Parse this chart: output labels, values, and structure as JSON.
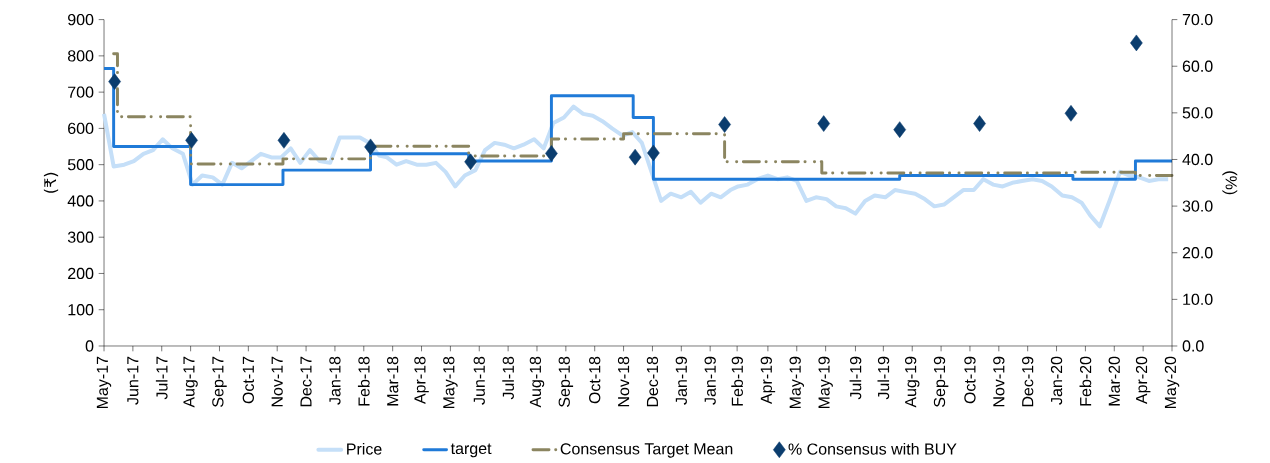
{
  "chart_data": {
    "type": "line",
    "ylabel": "(₹)",
    "y2label": "(%)",
    "x": [
      "2017-05-11",
      "2017-05-21",
      "2017-06-01",
      "2017-06-11",
      "2017-06-21",
      "2017-07-01",
      "2017-07-11",
      "2017-07-21",
      "2017-08-01",
      "2017-08-11",
      "2017-08-21",
      "2017-09-01",
      "2017-09-11",
      "2017-09-21",
      "2017-10-01",
      "2017-10-11",
      "2017-10-21",
      "2017-11-01",
      "2017-11-11",
      "2017-11-21",
      "2017-12-01",
      "2017-12-11",
      "2017-12-21",
      "2018-01-01",
      "2018-01-11",
      "2018-01-21",
      "2018-02-01",
      "2018-02-11",
      "2018-02-21",
      "2018-03-01",
      "2018-03-11",
      "2018-03-21",
      "2018-04-01",
      "2018-04-11",
      "2018-04-21",
      "2018-05-01",
      "2018-05-11",
      "2018-05-21",
      "2018-06-01",
      "2018-06-11",
      "2018-06-21",
      "2018-07-01",
      "2018-07-11",
      "2018-07-21",
      "2018-08-01",
      "2018-08-11",
      "2018-08-21",
      "2018-09-01",
      "2018-09-11",
      "2018-09-21",
      "2018-10-01",
      "2018-10-11",
      "2018-10-21",
      "2018-11-01",
      "2018-11-11",
      "2018-11-21",
      "2018-12-01",
      "2018-12-11",
      "2018-12-21",
      "2019-01-01",
      "2019-01-11",
      "2019-01-21",
      "2019-02-01",
      "2019-02-11",
      "2019-02-21",
      "2019-03-01",
      "2019-03-11",
      "2019-03-21",
      "2019-04-01",
      "2019-04-11",
      "2019-04-21",
      "2019-05-01",
      "2019-05-11",
      "2019-05-21",
      "2019-06-01",
      "2019-06-11",
      "2019-06-21",
      "2019-07-01",
      "2019-07-11",
      "2019-07-21",
      "2019-08-01",
      "2019-08-11",
      "2019-08-21",
      "2019-09-01",
      "2019-09-11",
      "2019-09-21",
      "2019-10-01",
      "2019-10-11",
      "2019-10-21",
      "2019-11-01",
      "2019-11-11",
      "2019-11-21",
      "2019-12-01",
      "2019-12-11",
      "2019-12-21",
      "2020-01-01",
      "2020-01-11",
      "2020-01-21",
      "2020-02-01",
      "2020-02-11",
      "2020-02-21",
      "2020-03-01",
      "2020-03-11",
      "2020-03-21",
      "2020-04-01",
      "2020-04-11",
      "2020-04-21",
      "2020-05-01",
      "2020-05-11",
      "2020-05-21"
    ],
    "series": [
      {
        "name": "Price",
        "color": "#c5dff8",
        "values": [
          640,
          495,
          500,
          510,
          530,
          540,
          570,
          545,
          530,
          445,
          470,
          465,
          445,
          505,
          490,
          510,
          530,
          520,
          520,
          545,
          505,
          540,
          510,
          505,
          575,
          575,
          575,
          560,
          525,
          520,
          500,
          510,
          500,
          500,
          505,
          480,
          440,
          470,
          485,
          540,
          560,
          555,
          545,
          555,
          570,
          545,
          615,
          630,
          660,
          640,
          635,
          620,
          600,
          580,
          590,
          560,
          480,
          400,
          420,
          410,
          425,
          395,
          420,
          410,
          430,
          440,
          445,
          460,
          470,
          460,
          465,
          455,
          400,
          410,
          405,
          385,
          380,
          365,
          400,
          415,
          410,
          430,
          425,
          420,
          405,
          385,
          390,
          410,
          430,
          430,
          460,
          445,
          440,
          450,
          455,
          460,
          455,
          440,
          415,
          410,
          395,
          360,
          330,
          400,
          480,
          470,
          465,
          455,
          460,
          460
        ]
      },
      {
        "name": "target",
        "type": "step",
        "color": "#1f7ad8",
        "x": [
          "2017-05-11",
          "2017-05-21",
          "2017-08-09",
          "2017-11-13",
          "2018-02-12",
          "2018-05-25",
          "2018-08-19",
          "2018-11-12",
          "2018-12-03",
          "2019-08-16",
          "2020-02-12",
          "2020-04-17",
          "2020-05-25"
        ],
        "values": [
          765,
          550,
          445,
          485,
          530,
          510,
          690,
          630,
          460,
          470,
          460,
          510,
          510
        ]
      },
      {
        "name": "Consensus Target Mean",
        "type": "step",
        "color": "#8b8560",
        "line_style": "dashed",
        "x": [
          "2017-05-21",
          "2017-05-25",
          "2017-08-09",
          "2017-11-13",
          "2018-02-12",
          "2018-05-25",
          "2018-08-19",
          "2018-11-02",
          "2019-02-15",
          "2019-05-27",
          "2020-02-12",
          "2020-04-17",
          "2020-05-25"
        ],
        "values": [
          806,
          632,
          502,
          516,
          551,
          524,
          571,
          585,
          508,
          477,
          479,
          470,
          470
        ]
      },
      {
        "name": "% Consensus with BUY",
        "type": "scatter",
        "axis": "y2",
        "marker": "diamond",
        "color": "#0b3d6e",
        "x": [
          "2017-05-22",
          "2017-08-10",
          "2017-11-14",
          "2018-02-12",
          "2018-05-27",
          "2018-08-19",
          "2018-11-14",
          "2018-12-03",
          "2019-02-15",
          "2019-05-29",
          "2019-08-16",
          "2019-11-07",
          "2020-02-10",
          "2020-04-18"
        ],
        "values": [
          56.7,
          44.1,
          44.1,
          42.7,
          39.5,
          41.3,
          40.5,
          41.4,
          47.5,
          47.7,
          46.4,
          47.7,
          49.9,
          65.0
        ]
      }
    ],
    "xlim": [
      "2017-05-11",
      "2020-05-25"
    ],
    "xticks": [
      {
        "value": "2017-05-11",
        "label": "May-17"
      },
      {
        "value": "2017-06-10",
        "label": "Jun-17"
      },
      {
        "value": "2017-07-10",
        "label": "Jul-17"
      },
      {
        "value": "2017-08-09",
        "label": "Aug-17"
      },
      {
        "value": "2017-09-08",
        "label": "Sep-17"
      },
      {
        "value": "2017-10-08",
        "label": "Oct-17"
      },
      {
        "value": "2017-11-07",
        "label": "Nov-17"
      },
      {
        "value": "2017-12-07",
        "label": "Dec-17"
      },
      {
        "value": "2018-01-06",
        "label": "Jan-18"
      },
      {
        "value": "2018-02-05",
        "label": "Feb-18"
      },
      {
        "value": "2018-03-07",
        "label": "Mar-18"
      },
      {
        "value": "2018-04-06",
        "label": "Apr-18"
      },
      {
        "value": "2018-05-06",
        "label": "May-18"
      },
      {
        "value": "2018-06-05",
        "label": "Jun-18"
      },
      {
        "value": "2018-07-05",
        "label": "Jul-18"
      },
      {
        "value": "2018-08-04",
        "label": "Aug-18"
      },
      {
        "value": "2018-09-03",
        "label": "Sep-18"
      },
      {
        "value": "2018-10-03",
        "label": "Oct-18"
      },
      {
        "value": "2018-11-02",
        "label": "Nov-18"
      },
      {
        "value": "2018-12-02",
        "label": "Dec-18"
      },
      {
        "value": "2019-01-01",
        "label": "Jan-19"
      },
      {
        "value": "2019-01-31",
        "label": "Jan-19"
      },
      {
        "value": "2019-02-28",
        "label": "Feb-19"
      },
      {
        "value": "2019-04-01",
        "label": "Apr-19"
      },
      {
        "value": "2019-05-01",
        "label": "May-19"
      },
      {
        "value": "2019-05-31",
        "label": "May-19"
      },
      {
        "value": "2019-07-01",
        "label": "Jul-19"
      },
      {
        "value": "2019-07-30",
        "label": "Jul-19"
      },
      {
        "value": "2019-08-29",
        "label": "Aug-19"
      },
      {
        "value": "2019-09-28",
        "label": "Sep-19"
      },
      {
        "value": "2019-10-28",
        "label": "Oct-19"
      },
      {
        "value": "2019-11-27",
        "label": "Nov-19"
      },
      {
        "value": "2019-12-27",
        "label": "Dec-19"
      },
      {
        "value": "2020-01-26",
        "label": "Jan-20"
      },
      {
        "value": "2020-02-25",
        "label": "Feb-20"
      },
      {
        "value": "2020-03-26",
        "label": "Mar-20"
      },
      {
        "value": "2020-04-25",
        "label": "Apr-20"
      },
      {
        "value": "2020-05-25",
        "label": "May-20"
      }
    ],
    "ylim": [
      0,
      900
    ],
    "yticks": [
      0,
      100,
      200,
      300,
      400,
      500,
      600,
      700,
      800,
      900
    ],
    "y2lim": [
      0,
      70
    ],
    "y2ticks": [
      {
        "value": 0,
        "label": "0.0"
      },
      {
        "value": 10,
        "label": "10.0"
      },
      {
        "value": 20,
        "label": "20.0"
      },
      {
        "value": 30,
        "label": "30.0"
      },
      {
        "value": 40,
        "label": "40.0"
      },
      {
        "value": 50,
        "label": "50.0"
      },
      {
        "value": 60,
        "label": "60.0"
      },
      {
        "value": 70,
        "label": "70.0"
      }
    ],
    "legend": "bottom",
    "grid": false
  }
}
